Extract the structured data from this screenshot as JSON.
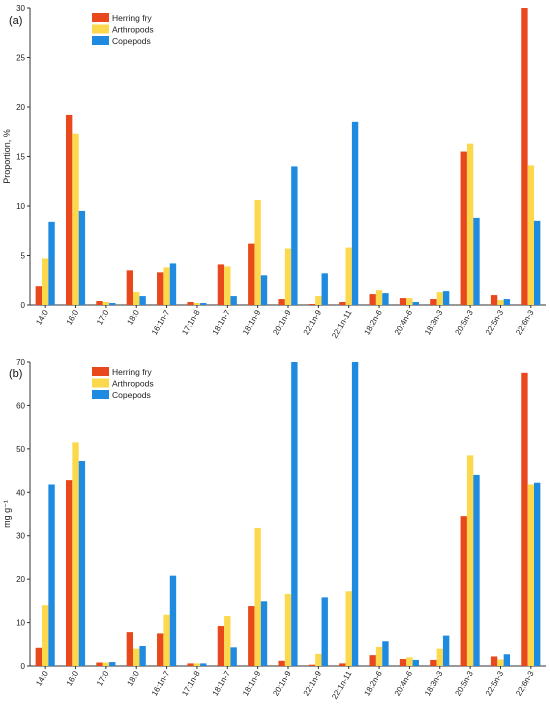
{
  "chart_data": [
    {
      "type": "bar",
      "panel_label": "(a)",
      "ylabel": "Proportion, %",
      "ylim": [
        0,
        30
      ],
      "yticks": [
        0,
        5,
        10,
        15,
        20,
        25,
        30
      ],
      "legend_position": "top-left",
      "categories": [
        "14:0",
        "16:0",
        "17:0",
        "18:0",
        "16:1n-7",
        "17:1n-8",
        "18:1n-7",
        "18:1n-9",
        "20:1n-9",
        "22:1n-9",
        "22:1n-11",
        "18:2n-6",
        "20:4n-6",
        "18:3n-3",
        "20:5n-3",
        "22:5n-3",
        "22:6n-3"
      ],
      "series": [
        {
          "name": "Herring fry",
          "color": "#e8481c",
          "values": [
            1.9,
            19.2,
            0.4,
            3.5,
            3.3,
            0.3,
            4.1,
            6.2,
            0.6,
            0.1,
            0.3,
            1.1,
            0.7,
            0.6,
            15.5,
            1.0,
            30.2
          ]
        },
        {
          "name": "Arthropods",
          "color": "#fcd94c",
          "values": [
            4.7,
            17.3,
            0.3,
            1.3,
            3.8,
            0.2,
            3.9,
            10.6,
            5.7,
            0.9,
            5.8,
            1.5,
            0.7,
            1.3,
            16.3,
            0.5,
            14.1
          ]
        },
        {
          "name": "Copepods",
          "color": "#1e8be0",
          "values": [
            8.4,
            9.5,
            0.2,
            0.9,
            4.2,
            0.2,
            0.9,
            3.0,
            14.0,
            3.2,
            18.5,
            1.2,
            0.3,
            1.4,
            8.8,
            0.6,
            8.5
          ]
        }
      ]
    },
    {
      "type": "bar",
      "panel_label": "(b)",
      "ylabel": "mg g⁻¹",
      "ylim": [
        0,
        70
      ],
      "yticks": [
        0,
        10,
        20,
        30,
        40,
        50,
        60,
        70
      ],
      "legend_position": "top-left",
      "categories": [
        "14:0",
        "16:0",
        "17:0",
        "18:0",
        "16:1n-7",
        "17:1n-8",
        "18:1n-7",
        "18:1n-9",
        "20:1n-9",
        "22:1n-9",
        "22:1n-11",
        "18:2n-6",
        "20:4n-6",
        "18:3n-3",
        "20:5n-3",
        "22:5n-3",
        "22:6n-3"
      ],
      "series": [
        {
          "name": "Herring fry",
          "color": "#e8481c",
          "values": [
            4.2,
            42.8,
            0.8,
            7.8,
            7.5,
            0.6,
            9.2,
            13.8,
            1.2,
            0.3,
            0.6,
            2.5,
            1.6,
            1.4,
            34.5,
            2.2,
            67.5
          ]
        },
        {
          "name": "Arthropods",
          "color": "#fcd94c",
          "values": [
            14.0,
            51.5,
            0.8,
            4.0,
            11.8,
            0.6,
            11.5,
            31.8,
            16.6,
            2.8,
            17.2,
            4.4,
            2.0,
            4.0,
            48.5,
            1.5,
            41.8
          ]
        },
        {
          "name": "Copepods",
          "color": "#1e8be0",
          "values": [
            41.8,
            47.2,
            0.9,
            4.6,
            20.8,
            0.6,
            4.3,
            14.9,
            70,
            15.8,
            70,
            5.7,
            1.4,
            7.0,
            44.0,
            2.7,
            42.2
          ]
        }
      ]
    }
  ]
}
